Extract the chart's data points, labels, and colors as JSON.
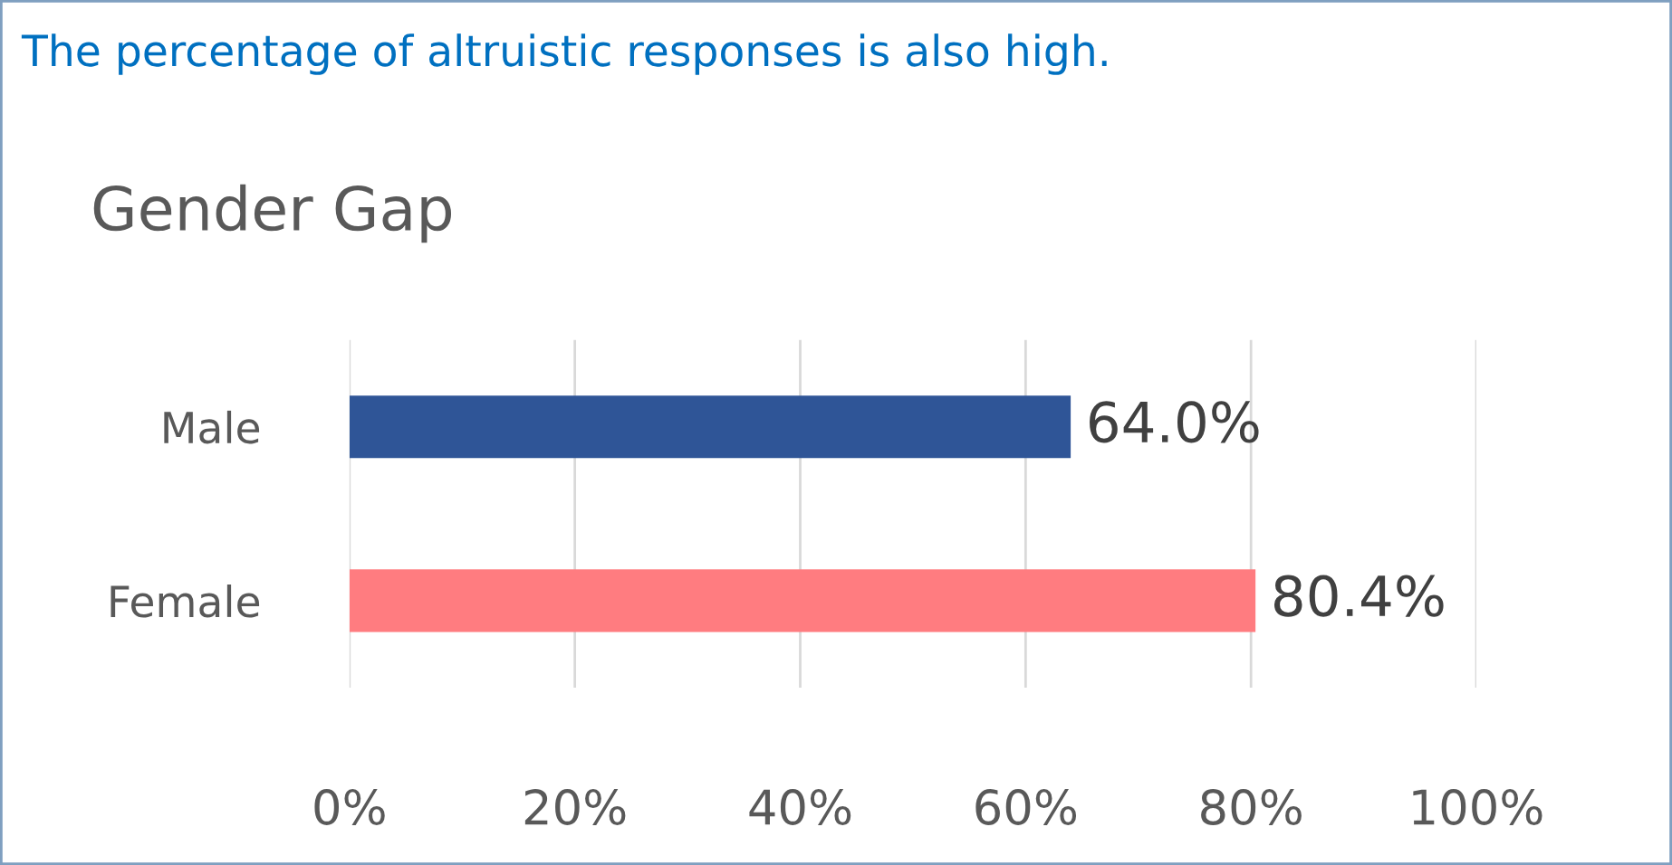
{
  "chart_data": {
    "type": "bar",
    "orientation": "horizontal",
    "subtitle": "The percentage of altruistic responses is also high.",
    "title": "Gender Gap",
    "categories": [
      "Male",
      "Female"
    ],
    "values": [
      64.0,
      80.4
    ],
    "colors": [
      "#2f5597",
      "#ff7c80"
    ],
    "value_labels": [
      "64.0%",
      "80.4%"
    ],
    "xlim": [
      0,
      100
    ],
    "xticks": [
      {
        "value": 0,
        "label": "0%"
      },
      {
        "value": 20,
        "label": "20%"
      },
      {
        "value": 40,
        "label": "40%"
      },
      {
        "value": 60,
        "label": "60%"
      },
      {
        "value": 80,
        "label": "80%"
      },
      {
        "value": 100,
        "label": "100%"
      }
    ],
    "grid": "x",
    "legend": false
  }
}
